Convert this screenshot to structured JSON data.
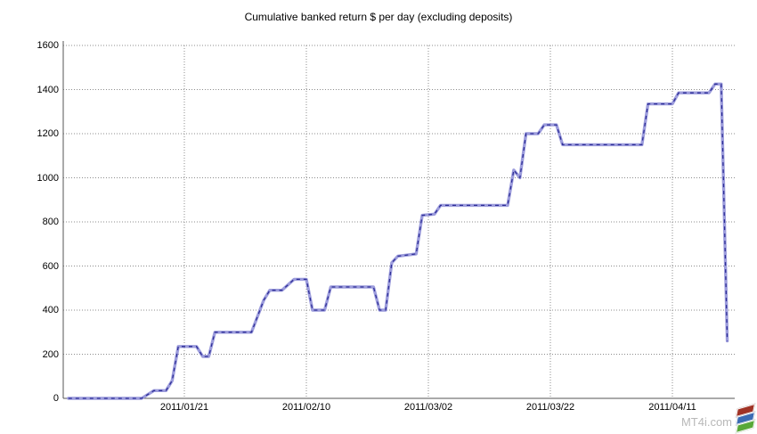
{
  "chart_data": {
    "type": "line",
    "title": "Cumulative banked return $ per day (excluding deposits)",
    "xlabel": "",
    "ylabel": "",
    "ylim": [
      0,
      1600
    ],
    "y_ticks": [
      0,
      200,
      400,
      600,
      800,
      1000,
      1200,
      1400,
      1600
    ],
    "x_ticks": [
      "2011/01/21",
      "2011/02/10",
      "2011/03/02",
      "2011/03/22",
      "2011/04/11"
    ],
    "x_tick_interval_days": 20,
    "grid": "dotted",
    "legend": "none",
    "series": [
      {
        "name": "Cumulative banked return",
        "points": [
          [
            "2011/01/02",
            0
          ],
          [
            "2011/01/14",
            0
          ],
          [
            "2011/01/16",
            35
          ],
          [
            "2011/01/18",
            35
          ],
          [
            "2011/01/19",
            80
          ],
          [
            "2011/01/20",
            235
          ],
          [
            "2011/01/23",
            235
          ],
          [
            "2011/01/24",
            190
          ],
          [
            "2011/01/25",
            190
          ],
          [
            "2011/01/26",
            300
          ],
          [
            "2011/02/01",
            300
          ],
          [
            "2011/02/03",
            445
          ],
          [
            "2011/02/04",
            490
          ],
          [
            "2011/02/06",
            490
          ],
          [
            "2011/02/08",
            540
          ],
          [
            "2011/02/10",
            540
          ],
          [
            "2011/02/11",
            400
          ],
          [
            "2011/02/13",
            400
          ],
          [
            "2011/02/14",
            505
          ],
          [
            "2011/02/21",
            505
          ],
          [
            "2011/02/22",
            400
          ],
          [
            "2011/02/23",
            400
          ],
          [
            "2011/02/24",
            615
          ],
          [
            "2011/02/25",
            645
          ],
          [
            "2011/02/28",
            655
          ],
          [
            "2011/03/01",
            830
          ],
          [
            "2011/03/03",
            835
          ],
          [
            "2011/03/04",
            875
          ],
          [
            "2011/03/15",
            875
          ],
          [
            "2011/03/16",
            1035
          ],
          [
            "2011/03/17",
            1000
          ],
          [
            "2011/03/18",
            1200
          ],
          [
            "2011/03/20",
            1200
          ],
          [
            "2011/03/21",
            1240
          ],
          [
            "2011/03/23",
            1240
          ],
          [
            "2011/03/24",
            1150
          ],
          [
            "2011/04/06",
            1150
          ],
          [
            "2011/04/07",
            1335
          ],
          [
            "2011/04/11",
            1335
          ],
          [
            "2011/04/12",
            1385
          ],
          [
            "2011/04/17",
            1385
          ],
          [
            "2011/04/18",
            1425
          ],
          [
            "2011/04/19",
            1425
          ],
          [
            "2011/04/20",
            260
          ]
        ]
      }
    ],
    "colors": {
      "line_base": "#9c9cdc",
      "line_dash": "#2d2d96",
      "grid": "#8c8c8c",
      "axis": "#555555",
      "text": "#000000"
    }
  },
  "watermark": {
    "text": "MT4i.com",
    "text_color": "#b8b8b8",
    "logo_icon": "mt4i-layers-icon",
    "logo_colors": [
      "#a03326",
      "#3c6cb4",
      "#58a838"
    ]
  }
}
